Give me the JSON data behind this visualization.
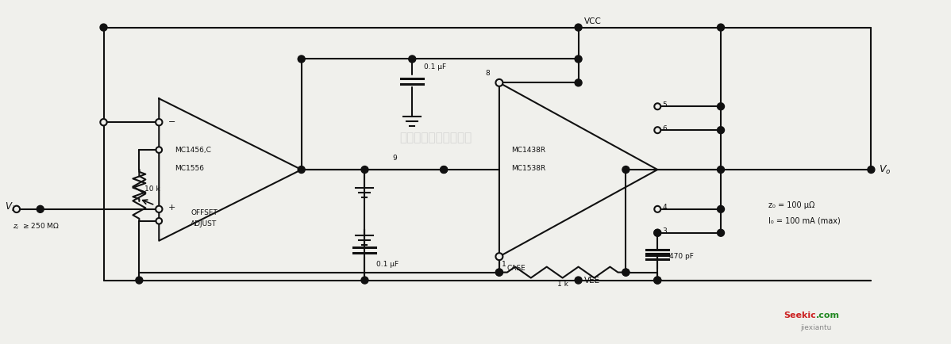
{
  "bg": "#f0f0ec",
  "lc": "#111111",
  "line_width": 1.5,
  "fw": 11.98,
  "fh": 4.34,
  "dpi": 100,
  "vi_label": "$V_i$",
  "zi_label": "$z_i$  ≥ 250 MΩ",
  "vcc_label": "VCC",
  "vee_label": "VEE",
  "vo_label": "$V_o$",
  "oa1_line1": "MC1456,C",
  "oa1_line2": "MC1556",
  "oa2_line1": "MC1438R",
  "oa2_line2": "MC1538R",
  "cap_top_label": "0.1 μF",
  "cap_bot_label": "0.1 μF",
  "res_10k": "10 k",
  "res_1k": "1 k",
  "cap_470": "470 pF",
  "offset1": "OFFSET",
  "offset2": "ADJUST",
  "case_label": "CASE",
  "pin9": "9",
  "zo_label": "z₀ = 100 μΩ",
  "io_label": "I₀ = 100 mA (max)",
  "wm": "杭州将睦科技有限公司",
  "seekic1": "Seekic",
  "seekic2": ".com",
  "jiexiantu": "jiexiantu"
}
